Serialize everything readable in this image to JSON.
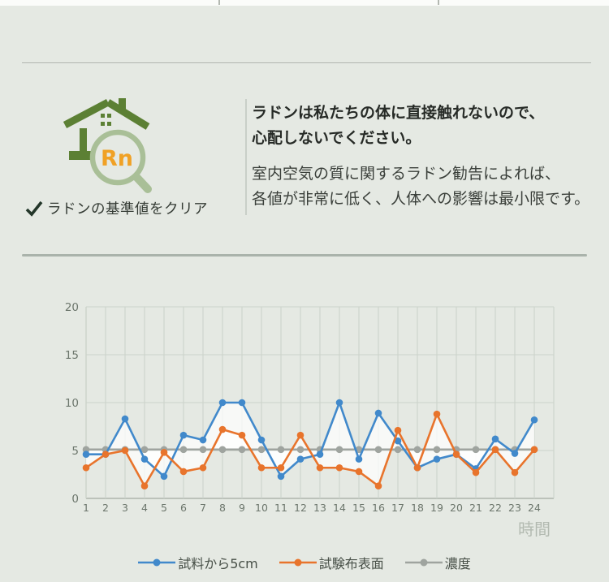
{
  "badge": {
    "label": "ラドンの基準値をクリア",
    "icon_symbol": "Rn",
    "check_symbol": "✔"
  },
  "icons": {
    "house_radon": "house-with-magnifier-icon",
    "check": "checkmark-icon"
  },
  "info": {
    "paragraphs": [
      {
        "lines": [
          "ラドンは私たちの体に直接触れないので、",
          "心配しないでください。"
        ]
      },
      {
        "lines": [
          "室内空気の質に関するラドン勧告によれば、",
          "各値が非常に低く、人体への影響は最小限です。"
        ]
      }
    ]
  },
  "chart_data": {
    "type": "line",
    "x": [
      1,
      2,
      3,
      4,
      5,
      6,
      7,
      8,
      9,
      10,
      11,
      12,
      13,
      14,
      15,
      16,
      17,
      18,
      19,
      20,
      21,
      22,
      23,
      24
    ],
    "series": [
      {
        "name": "試料から5cm",
        "color": "#4189cb",
        "values": [
          4.6,
          4.6,
          8.3,
          4.1,
          2.3,
          6.6,
          6.1,
          10,
          10,
          6.1,
          2.3,
          4.1,
          4.6,
          10,
          4.1,
          8.9,
          6.0,
          3.2,
          4.1,
          4.6,
          3.1,
          6.2,
          4.7,
          8.2
        ]
      },
      {
        "name": "試験布表面",
        "color": "#e8742c",
        "values": [
          3.2,
          4.6,
          5.0,
          1.3,
          4.8,
          2.8,
          3.2,
          7.2,
          6.6,
          3.2,
          3.2,
          6.6,
          3.2,
          3.2,
          2.8,
          1.3,
          7.1,
          3.2,
          8.8,
          4.6,
          2.7,
          5.1,
          2.7,
          5.1
        ]
      },
      {
        "name": "濃度",
        "color": "#9fa49f",
        "values": [
          5.1,
          5.1,
          5.1,
          5.1,
          5.1,
          5.1,
          5.1,
          5.1,
          5.1,
          5.1,
          5.1,
          5.1,
          5.1,
          5.1,
          5.1,
          5.1,
          5.1,
          5.1,
          5.1,
          5.1,
          5.1,
          5.1,
          5.1,
          5.1
        ]
      }
    ],
    "xlabel": "時間",
    "ylabel": "",
    "title": "",
    "ylim": [
      0,
      20
    ],
    "yticks": [
      0,
      5,
      10,
      15,
      20
    ],
    "grid": true,
    "legend_position": "bottom",
    "band_between_series_and_baseline": true
  },
  "colors": {
    "background": "#e5e9e3",
    "grid": "#ccd3cb",
    "axis": "#aeb6ad",
    "tick_label": "#6c766c",
    "xlabel_text": "#b3bab1",
    "band": "#ffffff",
    "house_green": "#5c8034",
    "magnifier_green": "#a9bf97",
    "rn_orange": "#f0a125",
    "check_green": "#233629"
  }
}
